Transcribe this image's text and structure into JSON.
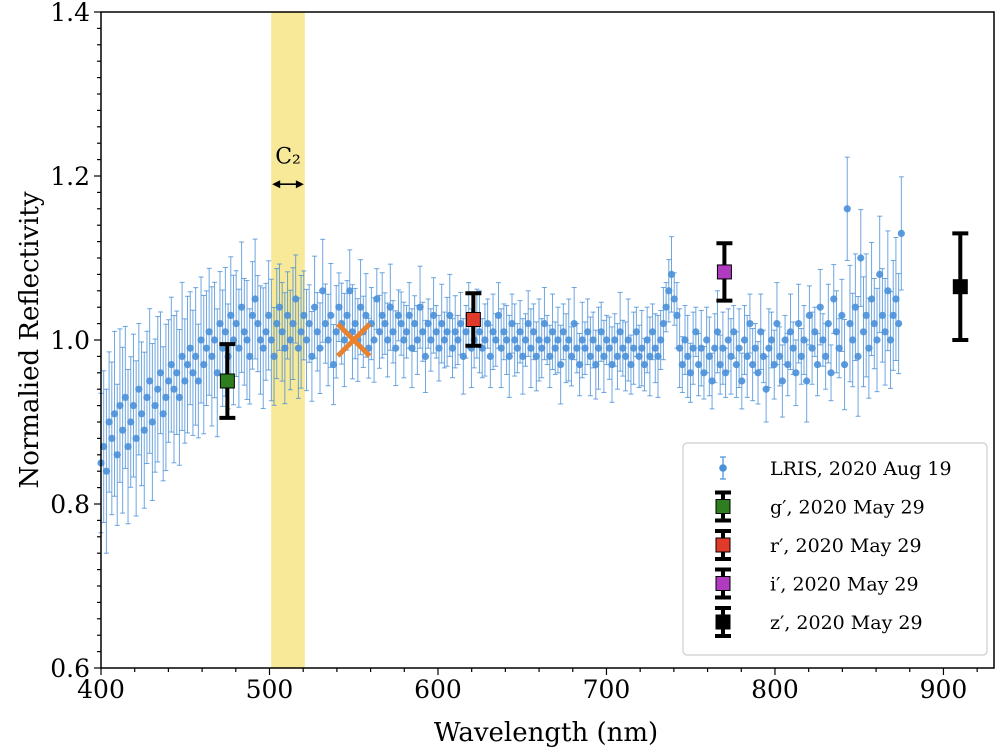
{
  "chart_data": {
    "type": "scatter",
    "title": "",
    "xlabel": "Wavelength (nm)",
    "ylabel": "Normalied Reflectivity",
    "xlim": [
      400,
      930
    ],
    "ylim": [
      0.6,
      1.4
    ],
    "xticks": [
      400,
      500,
      600,
      700,
      800,
      900
    ],
    "yticks": [
      0.6,
      0.8,
      1.0,
      1.2,
      1.4
    ],
    "grid": false,
    "legend_position": "bottom-right",
    "band": {
      "label": "C₂",
      "x_range": [
        501,
        521
      ],
      "color": "#f7e78e"
    },
    "cross_marker": {
      "x": 550,
      "y": 1.0,
      "color": "#e8822e"
    },
    "spectrum": {
      "name": "LRIS, 2020 Aug 19",
      "color": "#4a90d9",
      "x_start": 400,
      "x_end": 875,
      "y": [
        0.85,
        0.87,
        0.84,
        0.9,
        0.88,
        0.91,
        0.86,
        0.92,
        0.89,
        0.93,
        0.87,
        0.9,
        0.92,
        0.88,
        0.94,
        0.91,
        0.89,
        0.93,
        0.95,
        0.9,
        0.92,
        0.94,
        0.96,
        0.91,
        0.93,
        0.95,
        0.97,
        0.94,
        0.96,
        0.93,
        0.98,
        0.95,
        0.97,
        0.99,
        0.96,
        0.98,
        0.95,
        1.0,
        0.97,
        0.99,
        1.01,
        0.98,
        1.0,
        0.96,
        1.02,
        0.99,
        1.01,
        0.98,
        1.03,
        1.0,
        1.02,
        0.99,
        1.04,
        1.01,
        1.0,
        0.98,
        1.03,
        1.05,
        1.02,
        1.0,
        0.99,
        1.01,
        1.03,
        1.0,
        0.98,
        1.02,
        1.04,
        1.01,
        0.99,
        1.03,
        1.0,
        1.02,
        1.05,
        0.99,
        1.01,
        1.03,
        1.0,
        1.02,
        0.98,
        1.04,
        1.01,
        0.99,
        1.06,
        1.02,
        1.0,
        1.03,
        0.97,
        1.01,
        1.04,
        1.02,
        1.0,
        1.03,
        1.06,
        1.01,
        1.02,
        1.0,
        1.04,
        1.01,
        1.03,
        0.99,
        1.02,
        1.0,
        1.05,
        1.01,
        1.03,
        1.02,
        1.0,
        1.04,
        1.01,
        0.99,
        1.03,
        1.02,
        1.0,
        1.01,
        1.03,
        0.99,
        1.02,
        1.0,
        1.04,
        1.01,
        0.98,
        1.02,
        1.0,
        1.03,
        1.01,
        0.99,
        1.02,
        1.0,
        1.01,
        1.03,
        0.99,
        1.01,
        1.0,
        1.02,
        0.98,
        1.01,
        1.03,
        0.99,
        1.0,
        1.02,
        1.01,
        0.99,
        1.0,
        1.02,
        0.98,
        1.01,
        1.0,
        1.03,
        0.99,
        1.01,
        1.0,
        0.98,
        1.02,
        1.0,
        0.99,
        1.01,
        0.98,
        1.0,
        1.02,
        0.99,
        1.01,
        0.98,
        1.0,
        0.99,
        1.02,
        1.0,
        0.98,
        1.01,
        0.99,
        1.0,
        0.97,
        1.01,
        0.99,
        1.0,
        0.98,
        1.02,
        0.99,
        0.97,
        1.0,
        0.99,
        1.01,
        0.98,
        1.0,
        0.97,
        0.99,
        1.01,
        0.98,
        1.0,
        0.99,
        0.97,
        1.0,
        0.98,
        1.01,
        0.99,
        0.98,
        1.0,
        0.97,
        0.99,
        1.01,
        0.98,
        0.99,
        0.97,
        1.0,
        0.98,
        1.01,
        0.99,
        0.98,
        1.0,
        1.02,
        1.04,
        1.06,
        1.08,
        1.05,
        1.03,
        0.99,
        0.97,
        1.0,
        0.98,
        0.96,
        0.99,
        1.01,
        0.97,
        0.99,
        0.96,
        1.0,
        0.98,
        0.95,
        0.99,
        1.01,
        0.97,
        0.99,
        0.96,
        1.0,
        0.98,
        1.01,
        0.97,
        0.99,
        0.95,
        1.0,
        0.98,
        1.02,
        0.97,
        0.99,
        0.96,
        1.01,
        0.98,
        0.94,
        0.99,
        1.0,
        0.97,
        1.02,
        0.98,
        0.95,
        1.0,
        0.97,
        1.01,
        0.99,
        0.96,
        1.02,
        0.98,
        1.0,
        0.95,
        1.03,
        0.99,
        1.01,
        0.97,
        1.04,
        1.0,
        0.98,
        1.02,
        0.96,
        1.05,
        1.01,
        0.99,
        1.03,
        0.97,
        1.16,
        1.02,
        1.0,
        1.04,
        0.98,
        1.1,
        1.01,
        1.03,
        0.99,
        1.05,
        1.02,
        1.0,
        1.08,
        1.03,
        1.01,
        1.06,
        1.0,
        1.03,
        1.05,
        1.02,
        1.13
      ]
    },
    "photometry": [
      {
        "name": "g′, 2020 May 29",
        "x": 475,
        "y": 0.95,
        "err": 0.045,
        "color": "#2e7d1e"
      },
      {
        "name": "r′, 2020 May 29",
        "x": 621,
        "y": 1.025,
        "err": 0.032,
        "color": "#e23a2a"
      },
      {
        "name": "i′, 2020 May 29",
        "x": 770,
        "y": 1.083,
        "err": 0.035,
        "color": "#b03ac0"
      },
      {
        "name": "z′, 2020 May 29",
        "x": 910,
        "y": 1.065,
        "err": 0.065,
        "color": "#000000"
      }
    ]
  }
}
